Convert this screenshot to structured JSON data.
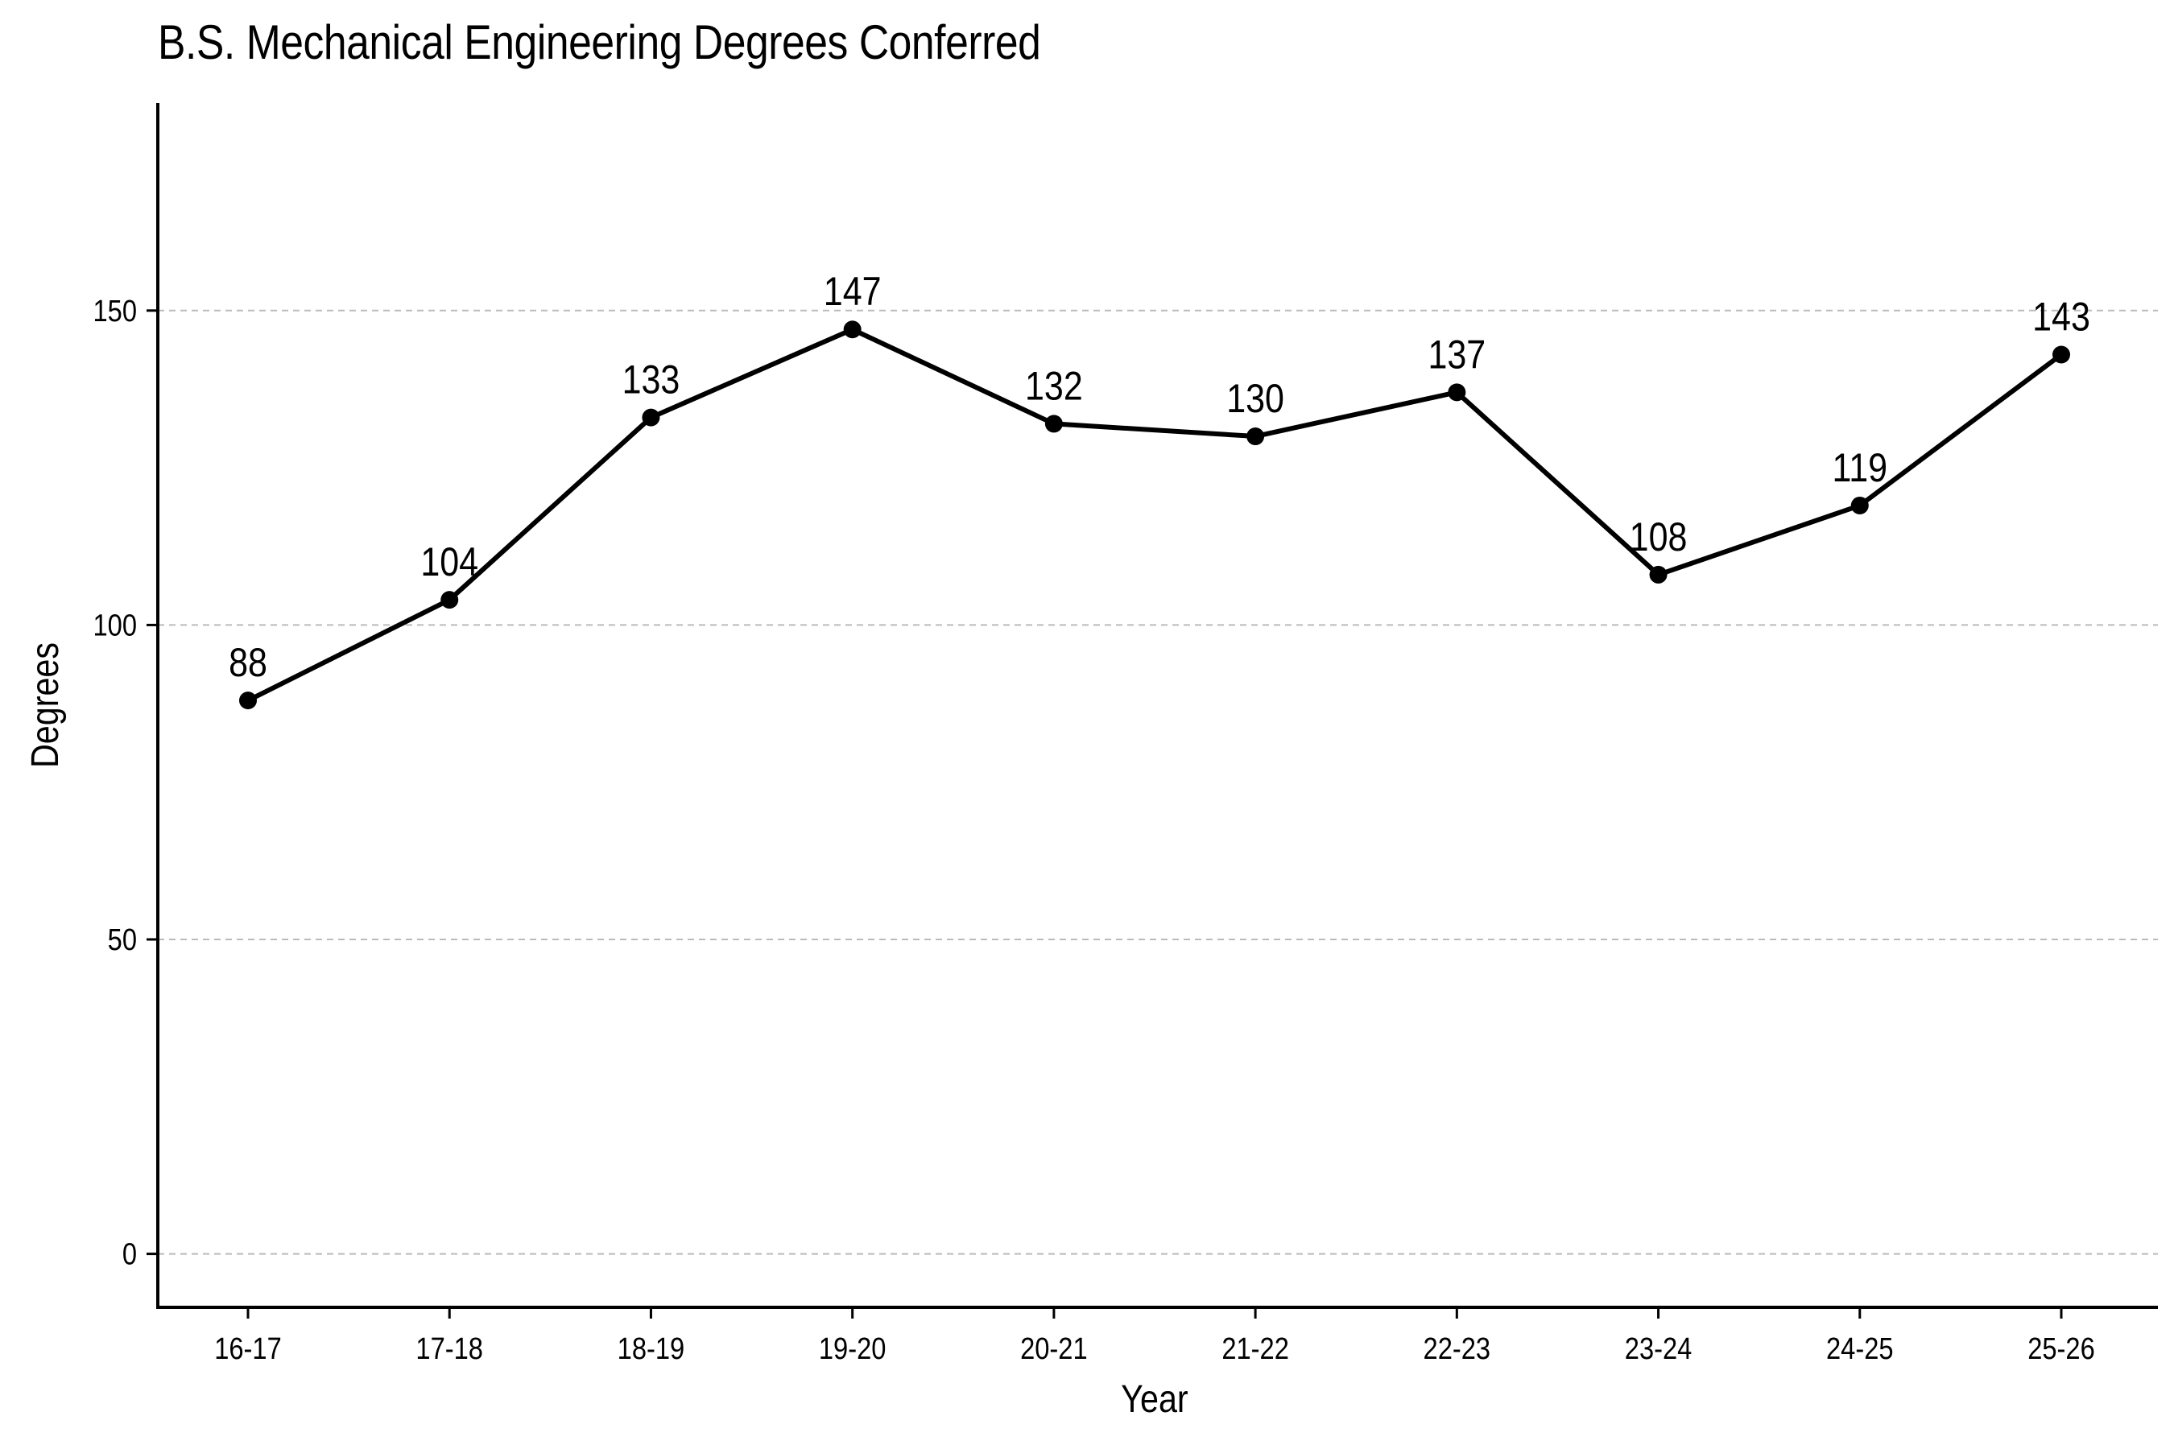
{
  "chart_data": {
    "type": "line",
    "title": "B.S. Mechanical Engineering Degrees Conferred",
    "xlabel": "Year",
    "ylabel": "Degrees",
    "categories": [
      "16-17",
      "17-18",
      "18-19",
      "19-20",
      "20-21",
      "21-22",
      "22-23",
      "23-24",
      "24-25",
      "25-26"
    ],
    "values": [
      88,
      104,
      133,
      147,
      132,
      130,
      137,
      108,
      119,
      143
    ],
    "data_labels": [
      "88",
      "104",
      "133",
      "147",
      "132",
      "130",
      "137",
      "108",
      "119",
      "143"
    ],
    "yticks": [
      0,
      50,
      100,
      150
    ],
    "ytick_labels": [
      "0",
      "50",
      "100",
      "150"
    ],
    "ylim": [
      -8.5,
      183
    ],
    "grid": "horizontal dashed",
    "legend": "none",
    "line_color": "#000000",
    "grid_color": "#bbbbbb"
  }
}
